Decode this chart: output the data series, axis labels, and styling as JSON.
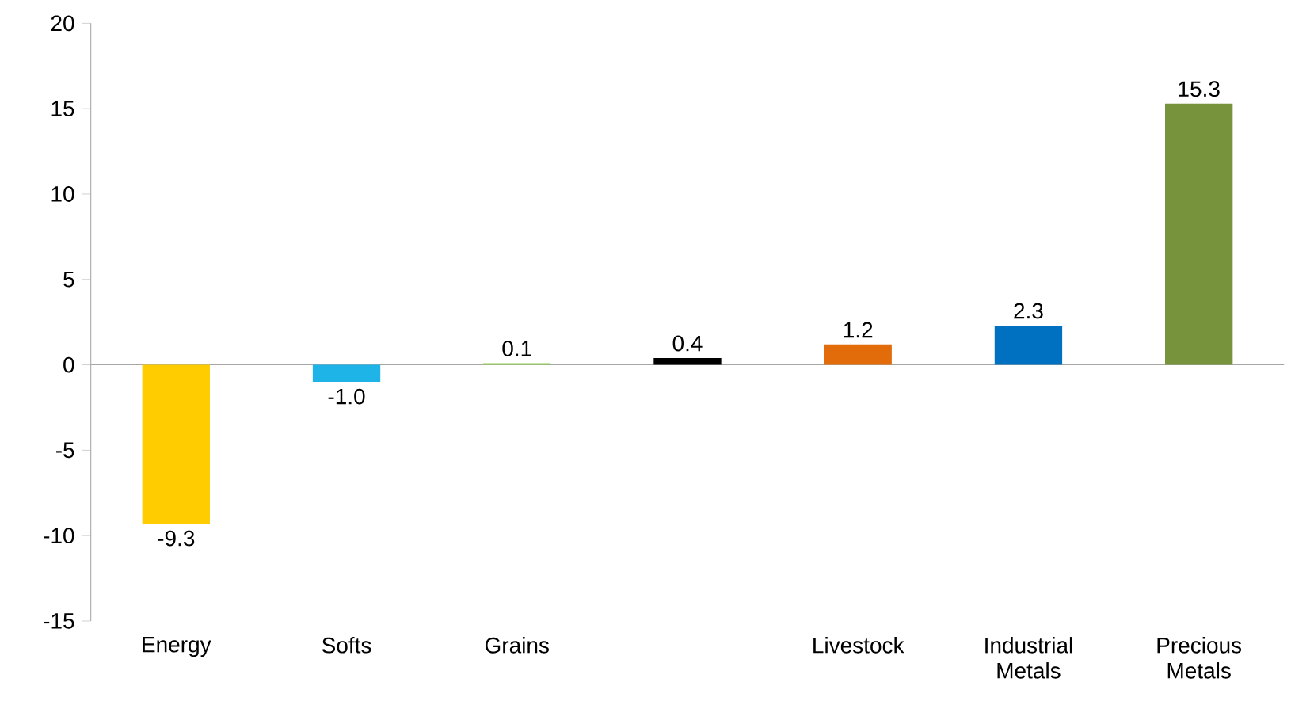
{
  "chart_data": {
    "type": "bar",
    "categories": [
      "Energy",
      "Softs",
      "Grains",
      null,
      "Livestock",
      "Industrial Metals",
      "Precious Metals"
    ],
    "values": [
      -9.3,
      -1.0,
      0.1,
      0.4,
      1.2,
      2.3,
      15.3
    ],
    "value_labels": [
      "-9.3",
      "-1.0",
      "0.1",
      "0.4",
      "1.2",
      "2.3",
      "15.3"
    ],
    "colors": [
      "#ffcc00",
      "#1fb4e8",
      "#92d050",
      "#000000",
      "#e36c0a",
      "#0070c0",
      "#77933c"
    ],
    "ylim": [
      -15,
      20
    ],
    "yticks": [
      -15,
      -10,
      -5,
      0,
      5,
      10,
      15,
      20
    ]
  }
}
